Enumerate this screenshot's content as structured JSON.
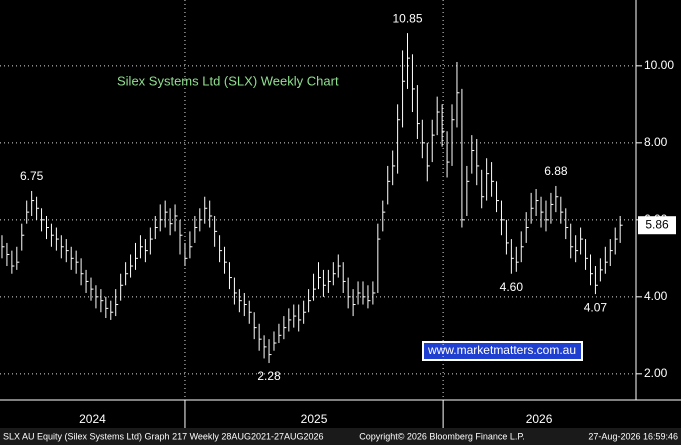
{
  "chart_data": {
    "type": "ohlc",
    "title": "Silex Systems Ltd (SLX) Weekly Chart",
    "watermark": "www.marketmatters.com.au",
    "footer_left": "SLX AU Equity (Silex Systems Ltd) Graph 217 Weekly 28AUG2021-27AUG2026",
    "footer_center": "Copyright© 2026 Bloomberg Finance L.P.",
    "footer_right": "27-Aug-2026 16:59:46",
    "color": "#ffffff",
    "x_labels": [
      "2024",
      "2025",
      "2026"
    ],
    "xticks": [
      37,
      89.2
    ],
    "xlim": [
      -0.4,
      128
    ],
    "ylim": [
      1.32,
      11.71
    ],
    "yticks": [
      {
        "value": 2,
        "label": "2.00"
      },
      {
        "value": 4,
        "label": "4.00"
      },
      {
        "value": 6,
        "label": "6.00"
      },
      {
        "value": 8,
        "label": "8.00"
      },
      {
        "value": 10,
        "label": "10.00"
      }
    ],
    "grid": true,
    "last_price": 5.86,
    "annotations": [
      {
        "value": 6.75,
        "label": "6.75",
        "bar": 6
      },
      {
        "value": 10.85,
        "label": "10.85",
        "bar": 82
      },
      {
        "value": 2.28,
        "label": "2.28",
        "bar": 54
      },
      {
        "value": 4.6,
        "label": "4.60",
        "bar": 103
      },
      {
        "value": 6.88,
        "label": "6.88",
        "bar": 112
      },
      {
        "value": 4.07,
        "label": "4.07",
        "bar": 120
      }
    ],
    "high": [
      5.6,
      5.4,
      5.2,
      5.3,
      5.9,
      6.5,
      6.75,
      6.6,
      6.3,
      6.1,
      5.9,
      5.8,
      5.6,
      5.5,
      5.3,
      5.2,
      5.0,
      4.7,
      4.5,
      4.3,
      4.2,
      4.0,
      3.9,
      4.2,
      4.6,
      4.9,
      5.1,
      5.4,
      5.6,
      5.5,
      5.8,
      6.1,
      6.4,
      6.5,
      6.3,
      6.4,
      6.0,
      5.4,
      5.7,
      6.1,
      6.3,
      6.6,
      6.5,
      6.1,
      5.6,
      5.3,
      4.9,
      4.5,
      4.2,
      4.1,
      3.9,
      3.6,
      3.3,
      3.0,
      2.9,
      3.1,
      3.3,
      3.5,
      3.7,
      3.8,
      3.8,
      3.9,
      4.2,
      4.6,
      4.9,
      4.7,
      4.7,
      4.9,
      5.1,
      4.9,
      4.5,
      4.2,
      4.4,
      4.4,
      4.3,
      4.4,
      5.9,
      6.5,
      7.4,
      7.8,
      9.0,
      10.4,
      10.85,
      10.3,
      9.5,
      8.6,
      8.0,
      8.6,
      9.2,
      9.0,
      8.3,
      9.0,
      10.1,
      9.4,
      7.4,
      8.2,
      8.1,
      7.3,
      7.6,
      7.5,
      7.0,
      6.5,
      6.0,
      5.5,
      5.3,
      5.7,
      6.2,
      6.7,
      6.8,
      6.6,
      6.5,
      6.7,
      6.88,
      6.6,
      6.3,
      5.9,
      5.6,
      5.8,
      5.5,
      5.1,
      4.8,
      5.0,
      5.3,
      5.5,
      5.8,
      6.1
    ],
    "low": [
      5.0,
      4.8,
      4.6,
      4.7,
      5.2,
      5.9,
      6.1,
      6.0,
      5.7,
      5.5,
      5.3,
      5.2,
      5.0,
      4.9,
      4.7,
      4.6,
      4.3,
      4.1,
      3.9,
      3.7,
      3.6,
      3.45,
      3.4,
      3.5,
      3.9,
      4.3,
      4.5,
      4.7,
      5.0,
      4.9,
      5.1,
      5.5,
      5.7,
      5.8,
      5.6,
      5.7,
      5.1,
      4.8,
      5.0,
      5.4,
      5.7,
      5.9,
      5.8,
      5.3,
      4.9,
      4.6,
      4.2,
      3.8,
      3.6,
      3.5,
      3.3,
      2.9,
      2.6,
      2.4,
      2.28,
      2.6,
      2.8,
      2.9,
      3.1,
      3.2,
      3.1,
      3.3,
      3.6,
      3.9,
      4.2,
      4.0,
      4.1,
      4.3,
      4.5,
      4.1,
      3.7,
      3.5,
      3.8,
      3.8,
      3.7,
      3.8,
      4.1,
      5.7,
      6.4,
      6.9,
      7.2,
      8.4,
      9.4,
      8.8,
      8.1,
      7.6,
      7.0,
      7.5,
      8.2,
      7.9,
      7.1,
      7.4,
      8.4,
      5.8,
      6.1,
      7.2,
      6.9,
      6.3,
      6.5,
      6.6,
      6.2,
      5.6,
      5.1,
      4.6,
      4.65,
      4.9,
      5.4,
      5.9,
      6.1,
      5.8,
      5.7,
      5.9,
      6.2,
      5.9,
      5.5,
      5.0,
      4.9,
      5.1,
      4.7,
      4.3,
      4.07,
      4.4,
      4.6,
      4.8,
      5.1,
      5.4
    ],
    "close": [
      5.3,
      5.1,
      4.8,
      4.9,
      5.6,
      6.2,
      6.5,
      6.3,
      6.0,
      5.8,
      5.6,
      5.5,
      5.3,
      5.2,
      5.0,
      4.9,
      4.6,
      4.4,
      4.2,
      4.0,
      3.9,
      3.7,
      3.6,
      3.8,
      4.3,
      4.6,
      4.8,
      5.0,
      5.3,
      5.2,
      5.5,
      5.8,
      6.0,
      6.2,
      5.9,
      6.1,
      5.6,
      5.0,
      5.3,
      5.8,
      6.0,
      6.3,
      6.1,
      5.7,
      5.2,
      4.9,
      4.5,
      4.1,
      3.9,
      3.8,
      3.6,
      3.2,
      2.9,
      2.7,
      2.5,
      2.8,
      3.0,
      3.2,
      3.4,
      3.5,
      3.4,
      3.6,
      3.9,
      4.2,
      4.5,
      4.3,
      4.4,
      4.6,
      4.8,
      4.4,
      4.0,
      3.8,
      4.1,
      4.0,
      3.9,
      4.1,
      5.5,
      6.2,
      7.0,
      7.4,
      8.6,
      9.6,
      10.2,
      9.4,
      8.5,
      8.0,
      7.4,
      8.2,
      8.8,
      8.3,
      7.5,
      8.6,
      9.3,
      6.0,
      7.0,
      7.8,
      7.4,
      6.6,
      7.2,
      7.0,
      6.5,
      6.0,
      5.4,
      5.0,
      4.9,
      5.3,
      5.8,
      6.3,
      6.5,
      6.2,
      6.0,
      6.4,
      6.6,
      6.2,
      5.8,
      5.3,
      5.2,
      5.5,
      5.0,
      4.6,
      4.3,
      4.7,
      4.9,
      5.2,
      5.5,
      5.86
    ]
  }
}
